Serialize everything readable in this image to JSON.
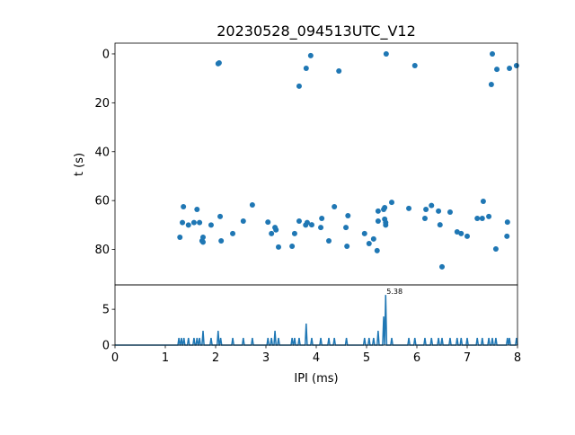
{
  "chart_data": [
    {
      "type": "scatter",
      "title": "20230528_094513UTC_V12",
      "ylabel": "t (s)",
      "color": "#1f77b4",
      "x": [
        2.05,
        2.07,
        3.89,
        3.8,
        3.66,
        4.45,
        5.39,
        5.96,
        7.5,
        7.59,
        7.84,
        7.98,
        7.48,
        1.29,
        1.34,
        1.36,
        1.46,
        1.57,
        1.63,
        1.68,
        1.73,
        1.75,
        1.75,
        1.91,
        2.09,
        2.11,
        2.34,
        2.55,
        2.73,
        3.04,
        3.11,
        3.18,
        3.2,
        3.25,
        3.52,
        3.57,
        3.66,
        3.79,
        3.82,
        3.91,
        4.09,
        4.11,
        4.25,
        4.36,
        4.59,
        4.61,
        4.63,
        4.96,
        5.05,
        5.14,
        5.21,
        5.23,
        5.23,
        5.34,
        5.36,
        5.36,
        5.38,
        5.38,
        5.5,
        5.84,
        6.16,
        6.18,
        6.29,
        6.43,
        6.46,
        6.5,
        6.66,
        6.8,
        6.88,
        7.0,
        7.2,
        7.32,
        7.3,
        7.43,
        7.57,
        7.79,
        7.8
      ],
      "values": [
        4.0,
        3.7,
        0.7,
        5.9,
        13.2,
        7.0,
        0,
        4.8,
        0,
        6.3,
        5.9,
        4.8,
        12.5,
        75,
        69,
        62.5,
        70,
        69,
        63.6,
        69,
        76.5,
        75,
        77,
        70,
        66.5,
        76.5,
        73.5,
        68.4,
        61.8,
        68.8,
        73.5,
        71,
        72,
        79,
        78.7,
        73.5,
        68.4,
        70,
        69,
        69.9,
        71,
        67.3,
        76.5,
        62.5,
        71,
        78.7,
        66.2,
        73.5,
        77.6,
        75.7,
        80.5,
        64.3,
        68.4,
        63.6,
        62.9,
        67.6,
        69,
        70,
        60.7,
        63.2,
        67.3,
        63.6,
        62,
        64.3,
        69.9,
        87.1,
        64.7,
        72.8,
        73.5,
        74.6,
        67.3,
        60.3,
        67.3,
        66.5,
        79.8,
        74.6,
        68.8
      ],
      "xlim": [
        0,
        8
      ],
      "ylim": [
        94.5,
        -4.4
      ],
      "yticks": [
        0,
        20,
        40,
        60,
        80
      ]
    },
    {
      "type": "line",
      "xlabel": "IPI (ms)",
      "color": "#1f77b4",
      "x": [
        0,
        1.25,
        1.27,
        1.29,
        1.3,
        1.32,
        1.34,
        1.35,
        1.37,
        1.39,
        1.44,
        1.46,
        1.48,
        1.55,
        1.57,
        1.59,
        1.61,
        1.63,
        1.65,
        1.66,
        1.68,
        1.7,
        1.73,
        1.75,
        1.77,
        1.89,
        1.91,
        1.93,
        2.03,
        2.05,
        2.07,
        2.08,
        2.1,
        2.12,
        2.32,
        2.34,
        2.36,
        2.53,
        2.55,
        2.57,
        2.71,
        2.73,
        2.75,
        3.02,
        3.04,
        3.06,
        3.09,
        3.11,
        3.13,
        3.16,
        3.18,
        3.2,
        3.23,
        3.25,
        3.27,
        3.5,
        3.52,
        3.54,
        3.55,
        3.57,
        3.59,
        3.64,
        3.66,
        3.68,
        3.78,
        3.8,
        3.82,
        3.89,
        3.91,
        3.93,
        4.07,
        4.09,
        4.11,
        4.23,
        4.25,
        4.27,
        4.34,
        4.36,
        4.38,
        4.58,
        4.6,
        4.62,
        4.94,
        4.96,
        4.98,
        5.03,
        5.05,
        5.07,
        5.12,
        5.14,
        5.16,
        5.21,
        5.23,
        5.25,
        5.32,
        5.34,
        5.36,
        5.36,
        5.38,
        5.4,
        5.48,
        5.5,
        5.52,
        5.82,
        5.84,
        5.86,
        5.94,
        5.96,
        5.98,
        6.14,
        6.16,
        6.18,
        6.27,
        6.29,
        6.31,
        6.41,
        6.43,
        6.45,
        6.48,
        6.5,
        6.52,
        6.64,
        6.66,
        6.68,
        6.78,
        6.8,
        6.82,
        6.86,
        6.88,
        6.9,
        6.98,
        7.0,
        7.02,
        7.18,
        7.2,
        7.22,
        7.28,
        7.3,
        7.32,
        7.41,
        7.43,
        7.45,
        7.48,
        7.5,
        7.52,
        7.55,
        7.57,
        7.59,
        7.78,
        7.8,
        7.82,
        7.82,
        7.84,
        7.86,
        7.96,
        7.98,
        8.0
      ],
      "values": [
        0,
        0,
        1,
        0,
        0,
        1,
        0,
        0,
        1,
        0,
        0,
        1,
        0,
        0,
        1,
        0,
        0,
        1,
        0,
        0,
        1,
        0,
        0,
        2,
        0,
        0,
        1,
        0,
        0,
        2,
        0,
        0,
        1,
        0,
        0,
        1,
        0,
        0,
        1,
        0,
        0,
        1,
        0,
        0,
        1,
        0,
        0,
        1,
        0,
        0,
        2,
        0,
        0,
        1,
        0,
        0,
        1,
        0,
        0,
        1,
        0,
        0,
        1,
        0,
        0,
        3,
        0,
        0,
        1,
        0,
        0,
        1,
        0,
        0,
        1,
        0,
        0,
        1,
        0,
        0,
        1,
        0,
        0,
        1,
        0,
        0,
        1,
        0,
        0,
        1,
        0,
        0,
        2,
        0,
        0,
        4,
        0,
        0,
        7,
        0,
        0,
        1,
        0,
        0,
        1,
        0,
        0,
        1,
        0,
        0,
        1,
        0,
        0,
        1,
        0,
        0,
        1,
        0,
        0,
        1,
        0,
        0,
        1,
        0,
        0,
        1,
        0,
        0,
        1,
        0,
        0,
        1,
        0,
        0,
        1,
        0,
        0,
        1,
        0,
        0,
        1,
        0,
        0,
        1,
        0,
        0,
        1,
        0,
        0,
        1,
        0,
        0,
        1,
        0,
        0,
        1,
        0
      ],
      "annotation": {
        "text": "5.38",
        "x": 5.38,
        "y": 7
      },
      "xlim": [
        0,
        8
      ],
      "xticks": [
        0,
        1,
        2,
        3,
        4,
        5,
        6,
        7,
        8
      ],
      "ylim": [
        0,
        8.4
      ],
      "yticks": [
        0,
        5
      ]
    }
  ]
}
